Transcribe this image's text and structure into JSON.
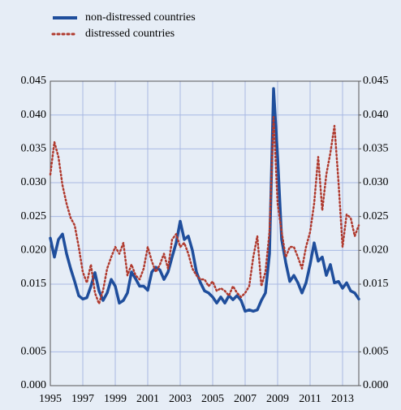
{
  "chart_data": {
    "type": "line",
    "x": [
      1995,
      1995.25,
      1995.5,
      1995.75,
      1996,
      1996.25,
      1996.5,
      1996.75,
      1997,
      1997.25,
      1997.5,
      1997.75,
      1998,
      1998.25,
      1998.5,
      1998.75,
      1999,
      1999.25,
      1999.5,
      1999.75,
      2000,
      2000.25,
      2000.5,
      2000.75,
      2001,
      2001.25,
      2001.5,
      2001.75,
      2002,
      2002.25,
      2002.5,
      2002.75,
      2003,
      2003.25,
      2003.5,
      2003.75,
      2004,
      2004.25,
      2004.5,
      2004.75,
      2005,
      2005.25,
      2005.5,
      2005.75,
      2006,
      2006.25,
      2006.5,
      2006.75,
      2007,
      2007.25,
      2007.5,
      2007.75,
      2008,
      2008.25,
      2008.5,
      2008.75,
      2009,
      2009.25,
      2009.5,
      2009.75,
      2010,
      2010.25,
      2010.5,
      2010.75,
      2011,
      2011.25,
      2011.5,
      2011.75,
      2012,
      2012.25,
      2012.5,
      2012.75,
      2013,
      2013.25,
      2013.5,
      2013.75,
      2014
    ],
    "series": [
      {
        "name": "non-distressed countries",
        "color": "#1f4e9c",
        "style": "solid",
        "values": [
          0.0218,
          0.019,
          0.0216,
          0.0224,
          0.0195,
          0.0173,
          0.0154,
          0.0133,
          0.0128,
          0.013,
          0.0147,
          0.0167,
          0.014,
          0.0126,
          0.0137,
          0.0157,
          0.0147,
          0.0122,
          0.0126,
          0.0137,
          0.0168,
          0.0158,
          0.0147,
          0.0147,
          0.0141,
          0.0168,
          0.0175,
          0.0171,
          0.0157,
          0.0168,
          0.019,
          0.0211,
          0.0243,
          0.0216,
          0.0221,
          0.02,
          0.0168,
          0.0152,
          0.014,
          0.0137,
          0.0131,
          0.0122,
          0.0131,
          0.0122,
          0.0133,
          0.0127,
          0.0133,
          0.0126,
          0.011,
          0.0112,
          0.011,
          0.0112,
          0.0126,
          0.0137,
          0.0195,
          0.0439,
          0.0338,
          0.0216,
          0.0182,
          0.0154,
          0.0163,
          0.0152,
          0.0137,
          0.0152,
          0.0179,
          0.0211,
          0.0184,
          0.019,
          0.0163,
          0.0179,
          0.0152,
          0.0154,
          0.0144,
          0.0152,
          0.014,
          0.0137,
          0.0128
        ]
      },
      {
        "name": "distressed countries",
        "color": "#b03a2e",
        "style": "dotted",
        "values": [
          0.0312,
          0.036,
          0.0338,
          0.0296,
          0.0269,
          0.0248,
          0.0237,
          0.0205,
          0.0168,
          0.0152,
          0.0179,
          0.0137,
          0.0121,
          0.0141,
          0.0173,
          0.019,
          0.0205,
          0.0195,
          0.0211,
          0.0163,
          0.0179,
          0.0163,
          0.0157,
          0.0173,
          0.0205,
          0.0184,
          0.0168,
          0.0179,
          0.0195,
          0.0173,
          0.0216,
          0.0224,
          0.0205,
          0.0211,
          0.0195,
          0.0173,
          0.0163,
          0.0157,
          0.0157,
          0.0147,
          0.0154,
          0.014,
          0.0144,
          0.014,
          0.0133,
          0.0147,
          0.0137,
          0.0131,
          0.0137,
          0.0147,
          0.019,
          0.0221,
          0.0147,
          0.0168,
          0.0227,
          0.0397,
          0.0269,
          0.0227,
          0.019,
          0.0205,
          0.0205,
          0.019,
          0.0173,
          0.0205,
          0.0227,
          0.0269,
          0.0338,
          0.0259,
          0.0312,
          0.0344,
          0.0384,
          0.0301,
          0.0205,
          0.0253,
          0.0248,
          0.0221,
          0.0237
        ]
      }
    ],
    "xlim": [
      1995,
      2014
    ],
    "xticks": [
      1995,
      1997,
      1999,
      2001,
      2003,
      2005,
      2007,
      2009,
      2011,
      2013
    ],
    "ylim": [
      0,
      0.045
    ],
    "yticks": [
      {
        "value": 0.045,
        "label": "0.045"
      },
      {
        "value": 0.04,
        "label": "0.040"
      },
      {
        "value": 0.035,
        "label": "0.035"
      },
      {
        "value": 0.03,
        "label": "0.030"
      },
      {
        "value": 0.025,
        "label": "0.025"
      },
      {
        "value": 0.02,
        "label": "0.020"
      },
      {
        "value": 0.015,
        "label": "0.015"
      },
      {
        "value": 0.005,
        "label": "0.005"
      },
      {
        "value": 0,
        "label": "0.000"
      }
    ],
    "y2lim": [
      0,
      0.045
    ],
    "y2ticks": [
      {
        "value": 0.045,
        "label": "0.045"
      },
      {
        "value": 0.04,
        "label": "0.040"
      },
      {
        "value": 0.035,
        "label": "0.035"
      },
      {
        "value": 0.03,
        "label": "0.030"
      },
      {
        "value": 0.025,
        "label": "0.025"
      },
      {
        "value": 0.02,
        "label": "0.020"
      },
      {
        "value": 0.015,
        "label": "0.015"
      },
      {
        "value": 0.005,
        "label": "0.005"
      },
      {
        "value": 0,
        "label": "0.000"
      }
    ],
    "grid": true,
    "legend": "top-left"
  }
}
